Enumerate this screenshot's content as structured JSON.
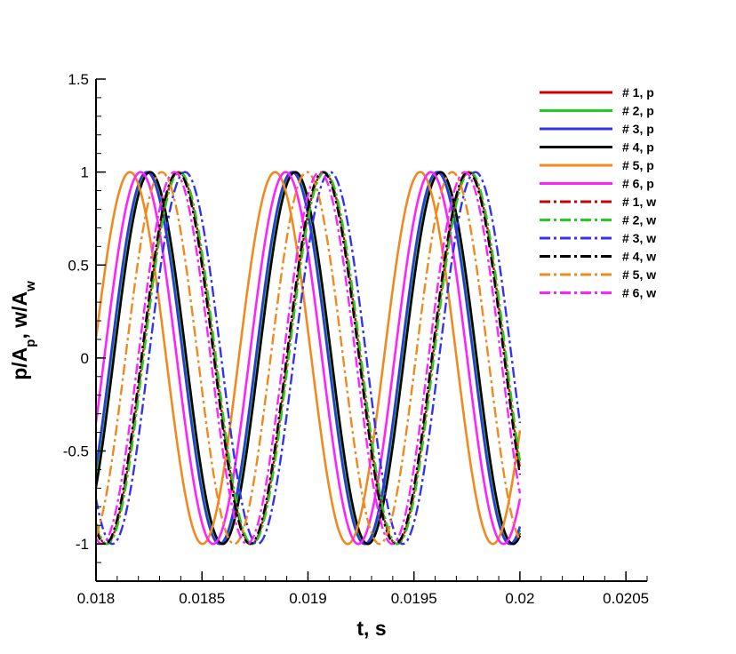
{
  "chart_data": {
    "type": "line",
    "xlabel": "t, s",
    "ylabel_parts": [
      "p/A",
      "p",
      ", w/A",
      "w"
    ],
    "xlim": [
      0.018,
      0.0206
    ],
    "ylim": [
      -1.2,
      1.5
    ],
    "x_ticks": [
      {
        "value": 0.018,
        "label": "0.018"
      },
      {
        "value": 0.0185,
        "label": "0.0185"
      },
      {
        "value": 0.019,
        "label": "0.019"
      },
      {
        "value": 0.0195,
        "label": "0.0195"
      },
      {
        "value": 0.02,
        "label": "0.02"
      },
      {
        "value": 0.0205,
        "label": "0.0205"
      }
    ],
    "y_ticks": [
      {
        "value": -1,
        "label": "-1"
      },
      {
        "value": -0.5,
        "label": "-0.5"
      },
      {
        "value": 0,
        "label": "0"
      },
      {
        "value": 0.5,
        "label": "0.5"
      },
      {
        "value": 1,
        "label": "1"
      },
      {
        "value": 1.5,
        "label": "1.5"
      }
    ],
    "grid": false,
    "legend_position": "top-right",
    "x_range": [
      0.018,
      0.02
    ],
    "frequency_hz": 1460,
    "series": [
      {
        "name": "# 1, p",
        "color": "#cc0000",
        "dash": "solid",
        "peak_t": 0.01825
      },
      {
        "name": "# 2, p",
        "color": "#22cc22",
        "dash": "solid",
        "peak_t": 0.018245
      },
      {
        "name": "# 3, p",
        "color": "#3333ee",
        "dash": "solid",
        "peak_t": 0.01824
      },
      {
        "name": "# 4, p",
        "color": "#000000",
        "dash": "solid",
        "peak_t": 0.018255
      },
      {
        "name": "# 5, p",
        "color": "#f0891e",
        "dash": "solid",
        "peak_t": 0.01816
      },
      {
        "name": "# 6, p",
        "color": "#ff22ff",
        "dash": "solid",
        "peak_t": 0.01821
      },
      {
        "name": "# 1, w",
        "color": "#cc0000",
        "dash": "dashdot",
        "peak_t": 0.01839
      },
      {
        "name": "# 2, w",
        "color": "#22cc22",
        "dash": "dashdot",
        "peak_t": 0.018395
      },
      {
        "name": "# 3, w",
        "color": "#3333ee",
        "dash": "dashdot",
        "peak_t": 0.01842
      },
      {
        "name": "# 4, w",
        "color": "#000000",
        "dash": "dashdot",
        "peak_t": 0.018385
      },
      {
        "name": "# 5, w",
        "color": "#f0891e",
        "dash": "dashdot",
        "peak_t": 0.01831
      },
      {
        "name": "# 6, w",
        "color": "#ff22ff",
        "dash": "dashdot",
        "peak_t": 0.01837
      }
    ]
  }
}
